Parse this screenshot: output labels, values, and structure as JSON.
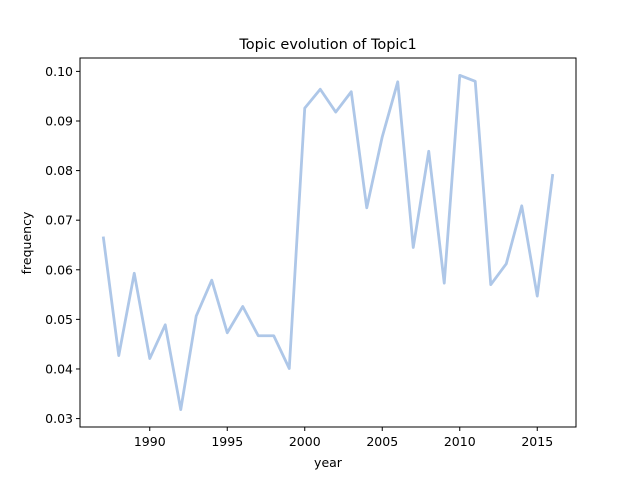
{
  "chart_data": {
    "type": "line",
    "title": "Topic evolution of Topic1",
    "xlabel": "year",
    "ylabel": "frequency",
    "xlim": [
      1985.5,
      1987.5
    ],
    "x_ticks": [
      "1990",
      "1995",
      "2000",
      "2005",
      "2010",
      "2015"
    ],
    "y_ticks": [
      "0.03",
      "0.04",
      "0.05",
      "0.06",
      "0.07",
      "0.08",
      "0.09",
      "0.10"
    ],
    "grid": false,
    "series": [
      {
        "color": "#aec7e8",
        "x": [
          1987,
          1988,
          1989,
          1990,
          1991,
          1992,
          1993,
          1994,
          1995,
          1996,
          1997,
          1998,
          1999,
          2000,
          2001,
          2002,
          2003,
          2004,
          2005,
          2006,
          2007,
          2008,
          2009,
          2010,
          2011,
          2012,
          2013,
          2014,
          2015,
          2016
        ],
        "values": [
          0.0667,
          0.0427,
          0.0593,
          0.0421,
          0.0489,
          0.0318,
          0.0507,
          0.0579,
          0.0473,
          0.0526,
          0.0467,
          0.0467,
          0.0401,
          0.0926,
          0.0964,
          0.0918,
          0.0959,
          0.0725,
          0.0868,
          0.0979,
          0.0645,
          0.0839,
          0.0573,
          0.0992,
          0.098,
          0.057,
          0.0612,
          0.0729,
          0.0547,
          0.0793
        ]
      }
    ]
  }
}
